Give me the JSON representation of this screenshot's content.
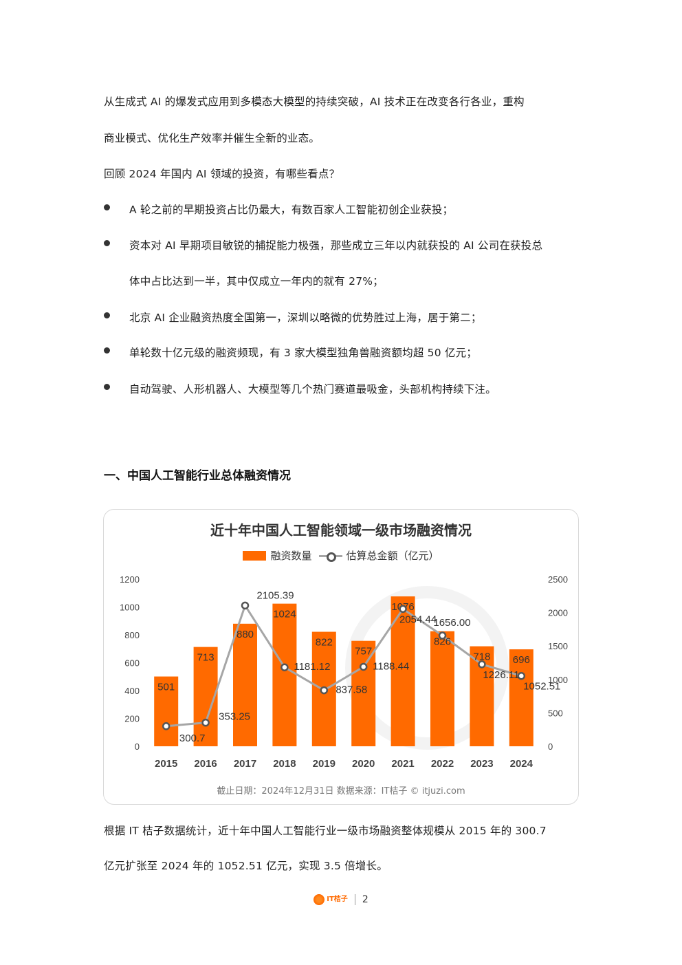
{
  "intro": {
    "line1": "从生成式 AI 的爆发式应用到多模态大模型的持续突破，AI 技术正在改变各行各业，重构",
    "line2": "商业模式、优化生产效率并催生全新的业态。",
    "line3": "回顾 2024 年国内 AI 领域的投资，有哪些看点？"
  },
  "bullets": [
    "A 轮之前的早期投资占比仍最大，有数百家人工智能初创企业获投；",
    "资本对 AI 早期项目敏锐的捕捉能力极强，那些成立三年以内就获投的 AI 公司在获投总",
    "体中占比达到一半，其中仅成立一年内的就有 27%；",
    "北京 AI 企业融资热度全国第一，深圳以略微的优势胜过上海，居于第二；",
    "单轮数十亿元级的融资频现，有 3 家大模型独角兽融资额均超 50 亿元；",
    "自动驾驶、人形机器人、大模型等几个热门赛道最吸金，头部机构持续下注。"
  ],
  "section": {
    "title": "一、中国人工智能行业总体融资情况"
  },
  "chart_data": {
    "type": "bar",
    "title": "近十年中国人工智能领域一级市场融资情况",
    "categories": [
      "2015",
      "2016",
      "2017",
      "2018",
      "2019",
      "2020",
      "2021",
      "2022",
      "2023",
      "2024"
    ],
    "series": [
      {
        "name": "融资数量",
        "type": "bar",
        "axis": "left",
        "color": "#ff6a00",
        "values": [
          501,
          713,
          880,
          1024,
          822,
          757,
          1076,
          826,
          718,
          696
        ]
      },
      {
        "name": "估算总金额（亿元）",
        "type": "line",
        "axis": "right",
        "color": "#a6a6a6",
        "values": [
          300.7,
          353.25,
          2105.39,
          1181.12,
          837.58,
          1188.44,
          2054.44,
          1656.0,
          1226.11,
          1052.51
        ],
        "labels": [
          "300.7",
          "353.25",
          "2105.39",
          "1181.12",
          "837.58",
          "1188.44",
          "2054.44",
          "1656.00",
          "1226.11",
          "1052.51"
        ]
      }
    ],
    "ylim_left": [
      0,
      1200
    ],
    "ylim_right": [
      0,
      2500
    ],
    "yticks_left": [
      0,
      200,
      400,
      600,
      800,
      1000,
      1200
    ],
    "yticks_right": [
      0,
      500,
      1000,
      1500,
      2000,
      2500
    ],
    "legend_position": "top-center",
    "grid": false,
    "footer": "截止日期：2024年12月31日    数据来源：IT桔子 © itjuzi.com"
  },
  "conclusion": {
    "line1": "根据 IT 桔子数据统计，近十年中国人工智能行业一级市场融资整体规模从 2015 年的 300.7",
    "line2": "亿元扩张至 2024 年的 1052.51 亿元，实现 3.5 倍增长。"
  },
  "footer": {
    "logo_text": "IT桔子",
    "page_number": "2"
  }
}
